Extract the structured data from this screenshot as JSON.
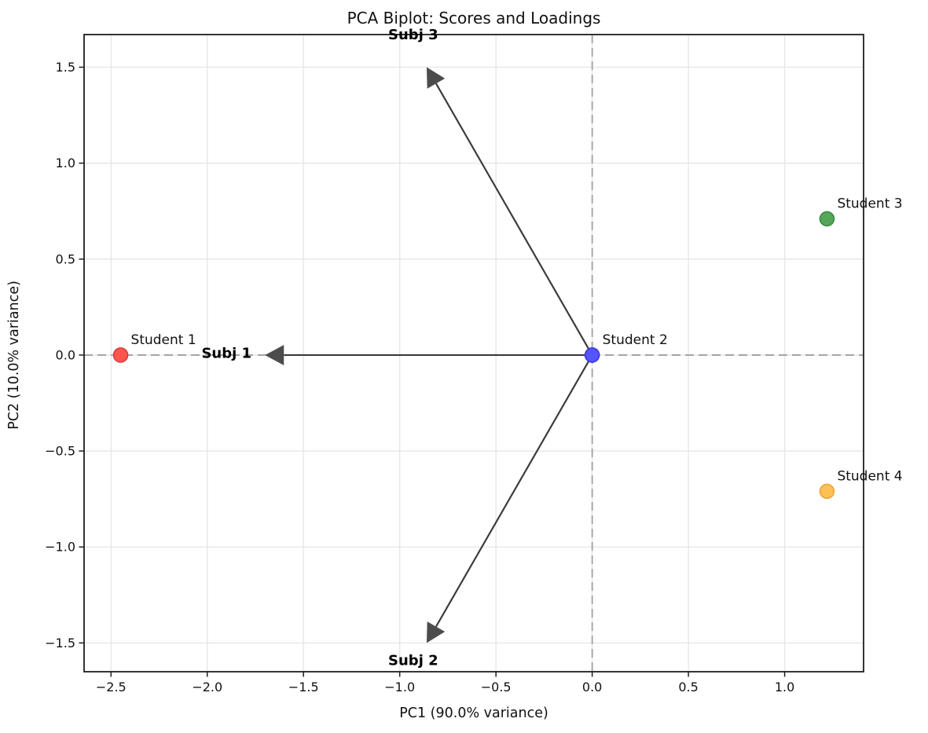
{
  "chart_data": {
    "type": "scatter",
    "subtype": "pca-biplot",
    "title": "PCA Biplot: Scores and Loadings",
    "xlabel": "PC1 (90.0% variance)",
    "ylabel": "PC2 (10.0% variance)",
    "xlim": [
      -2.64,
      1.41
    ],
    "ylim": [
      -1.65,
      1.67
    ],
    "grid": true,
    "legend": "none",
    "xticks": {
      "values": [
        -2.5,
        -2.0,
        -1.5,
        -1.0,
        -0.5,
        0.0,
        0.5,
        1.0
      ],
      "labels": [
        "−2.5",
        "−2.0",
        "−1.5",
        "−1.0",
        "−0.5",
        "0.0",
        "0.5",
        "1.0"
      ]
    },
    "yticks": {
      "values": [
        1.5,
        1.0,
        0.5,
        0.0,
        -0.5,
        -1.0,
        -1.5
      ],
      "labels": [
        "1.5",
        "1.0",
        "0.5",
        "0.0",
        "−0.5",
        "−1.0",
        "−1.5"
      ]
    },
    "zero_lines": {
      "style": "dashed",
      "color": "#9f9f9f",
      "x": 0,
      "y": 0
    },
    "scores": [
      {
        "label": "Student 1",
        "x": -2.45,
        "y": 0.0,
        "color": "#fb5550",
        "edge_color": "#e03a34"
      },
      {
        "label": "Student 2",
        "x": 0.0,
        "y": 0.0,
        "color": "#5555fb",
        "edge_color": "#3a34e0"
      },
      {
        "label": "Student 3",
        "x": 1.22,
        "y": 0.71,
        "color": "#55a65a",
        "edge_color": "#3d8a42"
      },
      {
        "label": "Student 4",
        "x": 1.22,
        "y": -0.71,
        "color": "#fbc155",
        "edge_color": "#eda63a"
      }
    ],
    "loadings": [
      {
        "label": "Subj 1",
        "x": -1.7,
        "y": 0.0,
        "label_x": -1.9,
        "label_y": 0.01
      },
      {
        "label": "Subj 2",
        "x": -0.86,
        "y": -1.5,
        "label_x": -0.93,
        "label_y": -1.59
      },
      {
        "label": "Subj 3",
        "x": -0.86,
        "y": 1.5,
        "label_x": -0.93,
        "label_y": 1.67
      }
    ],
    "styles": {
      "arrow_line_color": "#3c3c3c",
      "arrow_head_color": "#4c4c4c",
      "grid_color": "#e5e5e5",
      "frame_color": "#1f1f1f",
      "background": "#ffffff"
    }
  }
}
